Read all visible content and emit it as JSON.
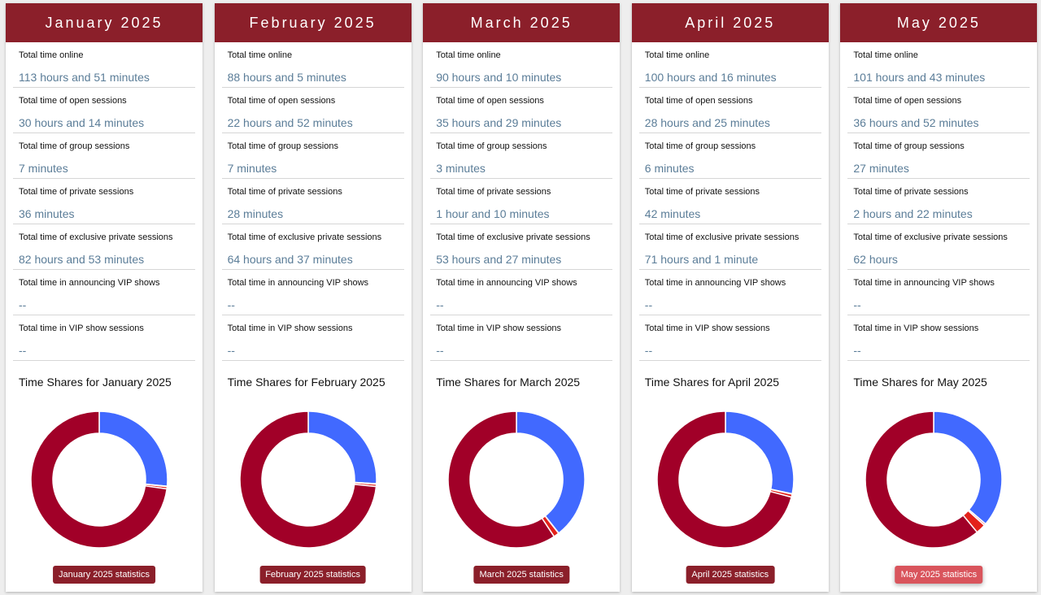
{
  "months": [
    {
      "title": "January 2025",
      "button": "January 2025 statistics",
      "stats": [
        {
          "label": "Total time online",
          "value": "113 hours and 51 minutes"
        },
        {
          "label": "Total time of open sessions",
          "value": "30 hours and 14 minutes"
        },
        {
          "label": "Total time of group sessions",
          "value": "7 minutes"
        },
        {
          "label": "Total time of private sessions",
          "value": "36 minutes"
        },
        {
          "label": "Total time of exclusive private sessions",
          "value": "82 hours and 53 minutes"
        },
        {
          "label": "Total time in announcing VIP shows",
          "value": "--"
        },
        {
          "label": "Total time in VIP show sessions",
          "value": "--"
        }
      ]
    },
    {
      "title": "February 2025",
      "button": "February 2025 statistics",
      "stats": [
        {
          "label": "Total time online",
          "value": "88 hours and 5 minutes"
        },
        {
          "label": "Total time of open sessions",
          "value": "22 hours and 52 minutes"
        },
        {
          "label": "Total time of group sessions",
          "value": "7 minutes"
        },
        {
          "label": "Total time of private sessions",
          "value": "28 minutes"
        },
        {
          "label": "Total time of exclusive private sessions",
          "value": "64 hours and 37 minutes"
        },
        {
          "label": "Total time in announcing VIP shows",
          "value": "--"
        },
        {
          "label": "Total time in VIP show sessions",
          "value": "--"
        }
      ]
    },
    {
      "title": "March 2025",
      "button": "March 2025 statistics",
      "stats": [
        {
          "label": "Total time online",
          "value": "90 hours and 10 minutes"
        },
        {
          "label": "Total time of open sessions",
          "value": "35 hours and 29 minutes"
        },
        {
          "label": "Total time of group sessions",
          "value": "3 minutes"
        },
        {
          "label": "Total time of private sessions",
          "value": "1 hour and 10 minutes"
        },
        {
          "label": "Total time of exclusive private sessions",
          "value": "53 hours and 27 minutes"
        },
        {
          "label": "Total time in announcing VIP shows",
          "value": "--"
        },
        {
          "label": "Total time in VIP show sessions",
          "value": "--"
        }
      ]
    },
    {
      "title": "April 2025",
      "button": "April 2025 statistics",
      "stats": [
        {
          "label": "Total time online",
          "value": "100 hours and 16 minutes"
        },
        {
          "label": "Total time of open sessions",
          "value": "28 hours and 25 minutes"
        },
        {
          "label": "Total time of group sessions",
          "value": "6 minutes"
        },
        {
          "label": "Total time of private sessions",
          "value": "42 minutes"
        },
        {
          "label": "Total time of exclusive private sessions",
          "value": "71 hours and 1 minute"
        },
        {
          "label": "Total time in announcing VIP shows",
          "value": "--"
        },
        {
          "label": "Total time in VIP show sessions",
          "value": "--"
        }
      ]
    },
    {
      "title": "May 2025",
      "button": "May 2025 statistics",
      "stats": [
        {
          "label": "Total time online",
          "value": "101 hours and 43 minutes"
        },
        {
          "label": "Total time of open sessions",
          "value": "36 hours and 52 minutes"
        },
        {
          "label": "Total time of group sessions",
          "value": "27 minutes"
        },
        {
          "label": "Total time of private sessions",
          "value": "2 hours and 22 minutes"
        },
        {
          "label": "Total time of exclusive private sessions",
          "value": "62 hours"
        },
        {
          "label": "Total time in announcing VIP shows",
          "value": "--"
        },
        {
          "label": "Total time in VIP show sessions",
          "value": "--"
        }
      ]
    }
  ],
  "chart_data": [
    {
      "type": "donut",
      "title": "Time Shares for January 2025",
      "values": [
        1814,
        7,
        36,
        4973
      ],
      "colors": [
        "#4169ff",
        "#f08a8a",
        "#e3221b",
        "#a10028"
      ]
    },
    {
      "type": "donut",
      "title": "Time Shares for February 2025",
      "values": [
        1372,
        7,
        28,
        3877
      ],
      "colors": [
        "#4169ff",
        "#f08a8a",
        "#e3221b",
        "#a10028"
      ]
    },
    {
      "type": "donut",
      "title": "Time Shares for March 2025",
      "values": [
        2129,
        3,
        70,
        3207
      ],
      "colors": [
        "#4169ff",
        "#f08a8a",
        "#e3221b",
        "#a10028"
      ]
    },
    {
      "type": "donut",
      "title": "Time Shares for April 2025",
      "values": [
        1705,
        6,
        42,
        4261
      ],
      "colors": [
        "#4169ff",
        "#f08a8a",
        "#e3221b",
        "#a10028"
      ]
    },
    {
      "type": "donut",
      "title": "Time Shares for May 2025",
      "values": [
        2212,
        27,
        142,
        3720
      ],
      "colors": [
        "#4169ff",
        "#f08a8a",
        "#e3221b",
        "#a10028"
      ]
    }
  ]
}
